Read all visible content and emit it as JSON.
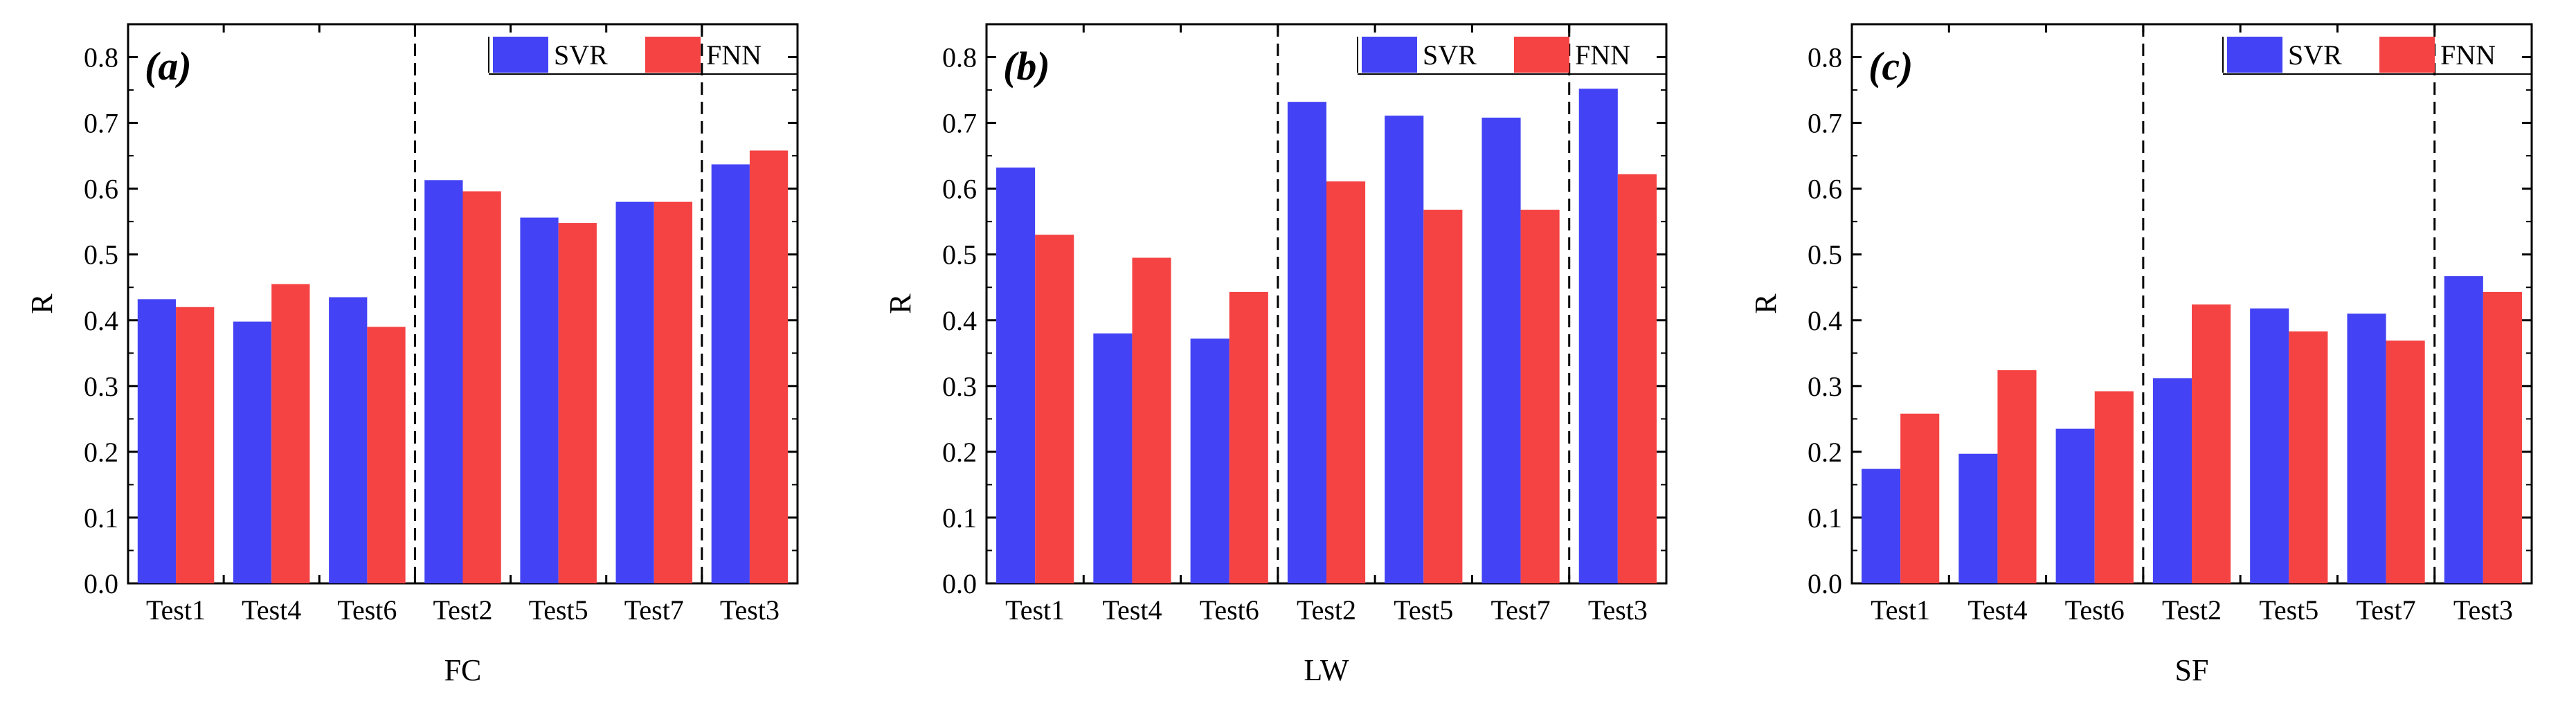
{
  "figure": {
    "colors": {
      "SVR": "#4343f5",
      "FNN": "#f54343",
      "axis": "#000000"
    }
  },
  "chart_data": [
    {
      "type": "bar",
      "panel_label": "(a)",
      "xlabel": "FC",
      "ylabel": "R",
      "ylim": [
        0,
        0.85
      ],
      "yticks": [
        "0.0",
        "0.1",
        "0.2",
        "0.3",
        "0.4",
        "0.5",
        "0.6",
        "0.7",
        "0.8"
      ],
      "categories": [
        "Test1",
        "Test4",
        "Test6",
        "Test2",
        "Test5",
        "Test7",
        "Test3"
      ],
      "separators_after_index": [
        2,
        5
      ],
      "legend": [
        "SVR",
        "FNN"
      ],
      "series": [
        {
          "name": "SVR",
          "values": [
            0.432,
            0.398,
            0.435,
            0.613,
            0.556,
            0.58,
            0.637
          ]
        },
        {
          "name": "FNN",
          "values": [
            0.42,
            0.455,
            0.39,
            0.596,
            0.548,
            0.58,
            0.658
          ]
        }
      ]
    },
    {
      "type": "bar",
      "panel_label": "(b)",
      "xlabel": "LW",
      "ylabel": "R",
      "ylim": [
        0,
        0.85
      ],
      "yticks": [
        "0.0",
        "0.1",
        "0.2",
        "0.3",
        "0.4",
        "0.5",
        "0.6",
        "0.7",
        "0.8"
      ],
      "categories": [
        "Test1",
        "Test4",
        "Test6",
        "Test2",
        "Test5",
        "Test7",
        "Test3"
      ],
      "separators_after_index": [
        2,
        5
      ],
      "legend": [
        "SVR",
        "FNN"
      ],
      "series": [
        {
          "name": "SVR",
          "values": [
            0.632,
            0.38,
            0.372,
            0.732,
            0.711,
            0.708,
            0.752
          ]
        },
        {
          "name": "FNN",
          "values": [
            0.53,
            0.495,
            0.443,
            0.611,
            0.568,
            0.568,
            0.622
          ]
        }
      ]
    },
    {
      "type": "bar",
      "panel_label": "(c)",
      "xlabel": "SF",
      "ylabel": "R",
      "ylim": [
        0,
        0.85
      ],
      "yticks": [
        "0.0",
        "0.1",
        "0.2",
        "0.3",
        "0.4",
        "0.5",
        "0.6",
        "0.7",
        "0.8"
      ],
      "categories": [
        "Test1",
        "Test4",
        "Test6",
        "Test2",
        "Test5",
        "Test7",
        "Test3"
      ],
      "separators_after_index": [
        2,
        5
      ],
      "legend": [
        "SVR",
        "FNN"
      ],
      "series": [
        {
          "name": "SVR",
          "values": [
            0.174,
            0.197,
            0.235,
            0.312,
            0.418,
            0.41,
            0.467
          ]
        },
        {
          "name": "FNN",
          "values": [
            0.258,
            0.324,
            0.292,
            0.424,
            0.383,
            0.369,
            0.443
          ]
        }
      ]
    }
  ]
}
